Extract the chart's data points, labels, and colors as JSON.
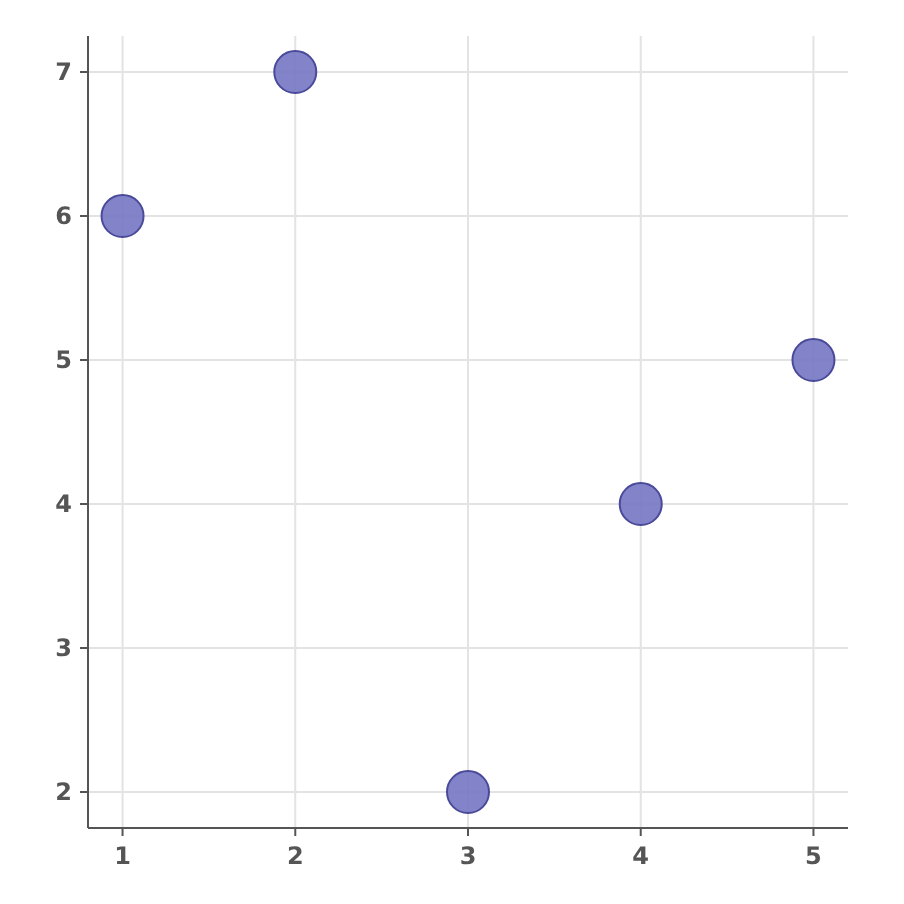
{
  "chart_data": {
    "type": "scatter",
    "x": [
      1,
      2,
      3,
      4,
      5
    ],
    "series": [
      {
        "color": "#7676c3",
        "values": [
          6,
          7,
          2,
          4,
          5
        ]
      }
    ],
    "xlim": [
      0.8,
      5.2
    ],
    "ylim": [
      1.75,
      7.25
    ],
    "xticks": [
      1,
      2,
      3,
      4,
      5
    ],
    "yticks": [
      2,
      3,
      4,
      5,
      6,
      7
    ],
    "grid": true,
    "marker": "circle"
  }
}
